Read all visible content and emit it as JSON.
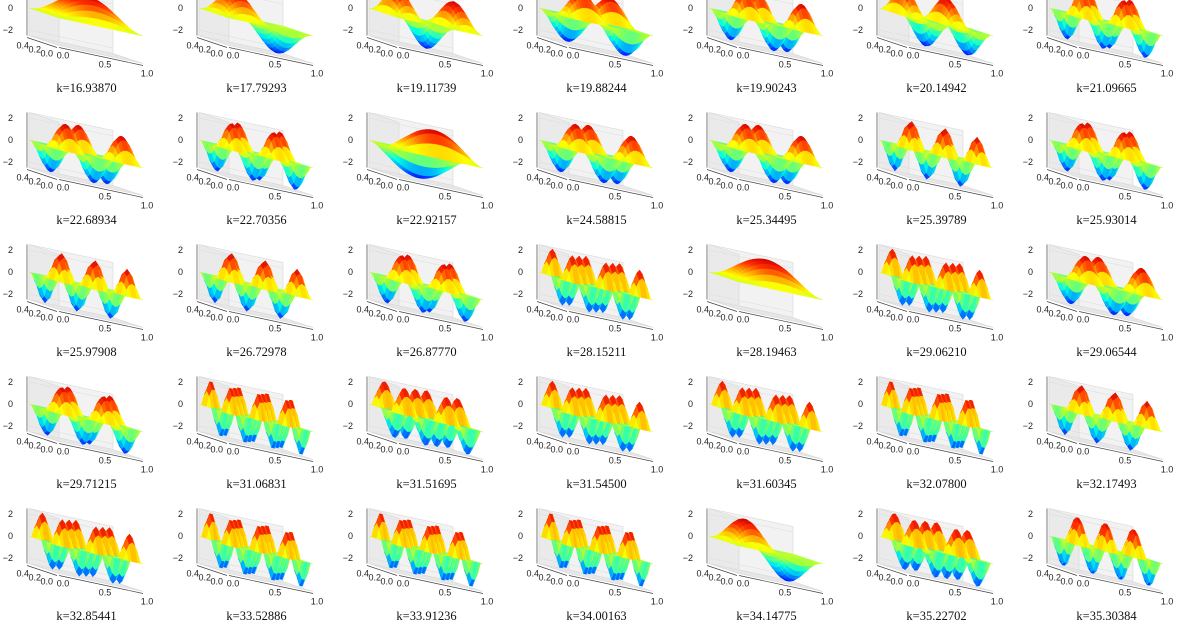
{
  "chart_data": {
    "type": "3d-surface-grid",
    "description_axes": {
      "z_ticks": [
        "2",
        "0",
        "−2"
      ],
      "y_ticks": [
        "0.4",
        "0.2",
        "0.0"
      ],
      "x_ticks": [
        "0.0",
        "0.5",
        "1.0"
      ]
    },
    "top_row_z_ticks": [
      "−2"
    ],
    "colormap": [
      "#0000ff",
      "#00a0ff",
      "#00ffe0",
      "#a0ff40",
      "#ffff00",
      "#ffa000",
      "#ff3000",
      "#d00000"
    ],
    "rows": [
      {
        "labels": [
          "k=16.93870",
          "k=17.79293",
          "k=19.11739",
          "k=19.88244",
          "k=19.90243",
          "k=20.14942",
          "k=21.09665"
        ],
        "modes": [
          [
            1,
            1
          ],
          [
            2,
            1
          ],
          [
            3,
            1
          ],
          [
            2,
            2
          ],
          [
            3,
            2
          ],
          [
            4,
            1
          ],
          [
            4,
            2
          ]
        ]
      },
      {
        "labels": [
          "k=22.68934",
          "k=22.70356",
          "k=22.92157",
          "k=24.58815",
          "k=25.34495",
          "k=25.39789",
          "k=25.93014"
        ],
        "modes": [
          [
            3,
            2
          ],
          [
            4,
            2
          ],
          [
            1,
            2
          ],
          [
            3,
            2
          ],
          [
            3,
            2
          ],
          [
            5,
            2
          ],
          [
            4,
            2
          ]
        ]
      },
      {
        "labels": [
          "k=25.97908",
          "k=26.72978",
          "k=26.87770",
          "k=28.15211",
          "k=28.19463",
          "k=29.06210",
          "k=29.06544"
        ],
        "modes": [
          [
            5,
            2
          ],
          [
            5,
            2
          ],
          [
            4,
            2
          ],
          [
            5,
            3
          ],
          [
            1,
            1
          ],
          [
            5,
            3
          ],
          [
            3,
            2
          ]
        ]
      },
      {
        "labels": [
          "k=29.71215",
          "k=31.06831",
          "k=31.51695",
          "k=31.54500",
          "k=31.60345",
          "k=32.07800",
          "k=32.17493"
        ],
        "modes": [
          [
            4,
            2
          ],
          [
            6,
            3
          ],
          [
            4,
            3
          ],
          [
            5,
            3
          ],
          [
            5,
            3
          ],
          [
            6,
            3
          ],
          [
            5,
            2
          ]
        ]
      },
      {
        "labels": [
          "k=32.85441",
          "k=33.52886",
          "k=33.91236",
          "k=34.00163",
          "k=34.14775",
          "k=35.22702",
          "k=35.30384"
        ],
        "modes": [
          [
            5,
            3
          ],
          [
            6,
            3
          ],
          [
            6,
            3
          ],
          [
            6,
            3
          ],
          [
            2,
            1
          ],
          [
            4,
            3
          ],
          [
            6,
            2
          ]
        ]
      }
    ]
  }
}
